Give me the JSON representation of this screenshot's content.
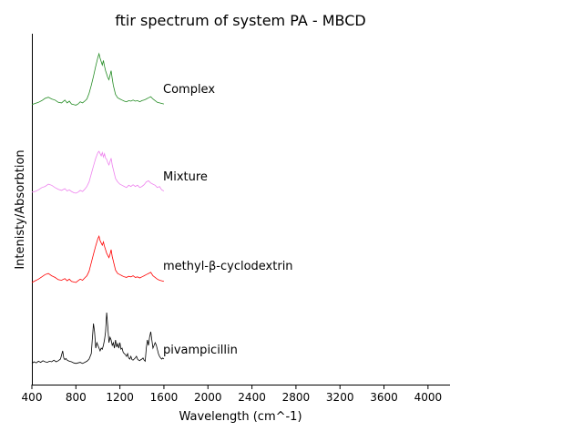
{
  "chart_data": {
    "type": "line",
    "title": "ftir spectrum of system PA - MBCD",
    "xlabel": "Wavelength (cm^-1)",
    "ylabel": "Intenisty/Absorbtion",
    "xlim": [
      400,
      4200
    ],
    "xticks": [
      "400",
      "800",
      "1200",
      "1600",
      "2000",
      "2400",
      "2800",
      "3200",
      "3600",
      "4000"
    ],
    "yticks_visible": false,
    "grid": false,
    "series": [
      {
        "name": "pivampicillin",
        "color": "#000000",
        "x": [
          400,
          420,
          440,
          460,
          480,
          500,
          520,
          540,
          560,
          580,
          600,
          620,
          640,
          660,
          680,
          690,
          700,
          710,
          720,
          740,
          760,
          780,
          800,
          820,
          840,
          860,
          880,
          900,
          920,
          940,
          960,
          970,
          980,
          990,
          1000,
          1010,
          1020,
          1030,
          1040,
          1050,
          1060,
          1070,
          1080,
          1090,
          1100,
          1110,
          1120,
          1130,
          1140,
          1150,
          1160,
          1170,
          1180,
          1190,
          1200,
          1210,
          1220,
          1230,
          1240,
          1250,
          1260,
          1270,
          1280,
          1290,
          1300,
          1310,
          1320,
          1330,
          1340,
          1350,
          1360,
          1370,
          1380,
          1390,
          1400,
          1410,
          1420,
          1430,
          1440,
          1450,
          1460,
          1470,
          1480,
          1490,
          1500,
          1510,
          1520,
          1530,
          1540,
          1550,
          1560,
          1570,
          1580,
          1590,
          1600
        ],
        "values": [
          0.02,
          0.05,
          0.03,
          0.06,
          0.04,
          0.07,
          0.05,
          0.04,
          0.06,
          0.05,
          0.08,
          0.05,
          0.07,
          0.1,
          0.25,
          0.12,
          0.09,
          0.11,
          0.08,
          0.06,
          0.05,
          0.03,
          0.02,
          0.03,
          0.04,
          0.02,
          0.04,
          0.06,
          0.1,
          0.2,
          0.75,
          0.6,
          0.3,
          0.4,
          0.35,
          0.3,
          0.25,
          0.3,
          0.28,
          0.35,
          0.45,
          0.6,
          0.95,
          0.7,
          0.4,
          0.5,
          0.45,
          0.35,
          0.4,
          0.3,
          0.45,
          0.32,
          0.38,
          0.3,
          0.4,
          0.28,
          0.3,
          0.22,
          0.2,
          0.18,
          0.15,
          0.2,
          0.12,
          0.1,
          0.15,
          0.09,
          0.08,
          0.1,
          0.12,
          0.15,
          0.1,
          0.08,
          0.07,
          0.09,
          0.1,
          0.12,
          0.08,
          0.06,
          0.3,
          0.45,
          0.35,
          0.5,
          0.6,
          0.45,
          0.3,
          0.35,
          0.4,
          0.36,
          0.28,
          0.2,
          0.15,
          0.12,
          0.1,
          0.12,
          0.1
        ]
      },
      {
        "name": "methyl-β-cyclodextrin",
        "color": "#ff0000",
        "x": [
          400,
          430,
          460,
          490,
          520,
          550,
          580,
          610,
          640,
          670,
          700,
          720,
          740,
          760,
          780,
          800,
          820,
          840,
          860,
          880,
          900,
          920,
          940,
          960,
          980,
          1000,
          1010,
          1020,
          1030,
          1040,
          1050,
          1060,
          1070,
          1080,
          1090,
          1100,
          1110,
          1120,
          1130,
          1140,
          1150,
          1160,
          1180,
          1200,
          1220,
          1240,
          1260,
          1280,
          1300,
          1320,
          1340,
          1360,
          1380,
          1400,
          1420,
          1440,
          1460,
          1480,
          1500,
          1520,
          1540,
          1560,
          1580,
          1600
        ],
        "values": [
          0.0,
          0.03,
          0.06,
          0.1,
          0.14,
          0.16,
          0.12,
          0.09,
          0.05,
          0.04,
          0.07,
          0.03,
          0.06,
          0.02,
          0.01,
          0.0,
          0.03,
          0.06,
          0.04,
          0.08,
          0.12,
          0.2,
          0.35,
          0.5,
          0.65,
          0.78,
          0.82,
          0.74,
          0.7,
          0.66,
          0.72,
          0.64,
          0.58,
          0.52,
          0.48,
          0.44,
          0.5,
          0.58,
          0.46,
          0.38,
          0.3,
          0.22,
          0.16,
          0.14,
          0.12,
          0.1,
          0.09,
          0.11,
          0.1,
          0.12,
          0.09,
          0.1,
          0.08,
          0.1,
          0.12,
          0.14,
          0.16,
          0.18,
          0.12,
          0.09,
          0.06,
          0.04,
          0.03,
          0.02
        ]
      },
      {
        "name": "Mixture",
        "color": "#ee82ee",
        "x": [
          400,
          430,
          460,
          490,
          520,
          550,
          580,
          610,
          640,
          670,
          700,
          720,
          740,
          760,
          780,
          800,
          820,
          840,
          860,
          880,
          900,
          920,
          940,
          960,
          980,
          1000,
          1010,
          1020,
          1030,
          1040,
          1050,
          1060,
          1070,
          1080,
          1090,
          1100,
          1110,
          1120,
          1130,
          1140,
          1150,
          1160,
          1180,
          1200,
          1220,
          1240,
          1260,
          1280,
          1300,
          1320,
          1340,
          1360,
          1380,
          1400,
          1420,
          1440,
          1460,
          1480,
          1500,
          1520,
          1540,
          1560,
          1580,
          1600
        ],
        "values": [
          0.02,
          0.03,
          0.06,
          0.1,
          0.12,
          0.16,
          0.14,
          0.1,
          0.07,
          0.05,
          0.08,
          0.04,
          0.06,
          0.03,
          0.01,
          0.0,
          0.02,
          0.05,
          0.03,
          0.07,
          0.12,
          0.2,
          0.34,
          0.48,
          0.62,
          0.72,
          0.74,
          0.7,
          0.66,
          0.72,
          0.64,
          0.7,
          0.62,
          0.6,
          0.54,
          0.5,
          0.56,
          0.62,
          0.5,
          0.42,
          0.34,
          0.26,
          0.2,
          0.16,
          0.14,
          0.12,
          0.1,
          0.14,
          0.12,
          0.15,
          0.12,
          0.14,
          0.1,
          0.12,
          0.15,
          0.2,
          0.22,
          0.18,
          0.16,
          0.14,
          0.1,
          0.12,
          0.06,
          0.04
        ]
      },
      {
        "name": "Complex",
        "color": "#228b22",
        "x": [
          400,
          430,
          460,
          490,
          520,
          550,
          580,
          610,
          640,
          670,
          700,
          720,
          740,
          760,
          780,
          800,
          820,
          840,
          860,
          880,
          900,
          920,
          940,
          960,
          980,
          1000,
          1010,
          1020,
          1030,
          1040,
          1050,
          1060,
          1070,
          1080,
          1090,
          1100,
          1110,
          1120,
          1130,
          1140,
          1150,
          1160,
          1180,
          1200,
          1220,
          1240,
          1260,
          1280,
          1300,
          1320,
          1340,
          1360,
          1380,
          1400,
          1420,
          1440,
          1460,
          1480,
          1500,
          1520,
          1540,
          1560,
          1580,
          1600
        ],
        "values": [
          0.02,
          0.04,
          0.06,
          0.09,
          0.13,
          0.15,
          0.12,
          0.1,
          0.06,
          0.05,
          0.1,
          0.05,
          0.08,
          0.03,
          0.02,
          0.01,
          0.03,
          0.07,
          0.05,
          0.08,
          0.12,
          0.22,
          0.36,
          0.52,
          0.7,
          0.86,
          0.92,
          0.84,
          0.78,
          0.72,
          0.8,
          0.7,
          0.62,
          0.56,
          0.5,
          0.46,
          0.54,
          0.62,
          0.48,
          0.36,
          0.28,
          0.2,
          0.14,
          0.12,
          0.1,
          0.08,
          0.07,
          0.09,
          0.08,
          0.1,
          0.08,
          0.09,
          0.07,
          0.09,
          0.1,
          0.12,
          0.14,
          0.16,
          0.12,
          0.09,
          0.06,
          0.05,
          0.04,
          0.03
        ]
      }
    ]
  }
}
